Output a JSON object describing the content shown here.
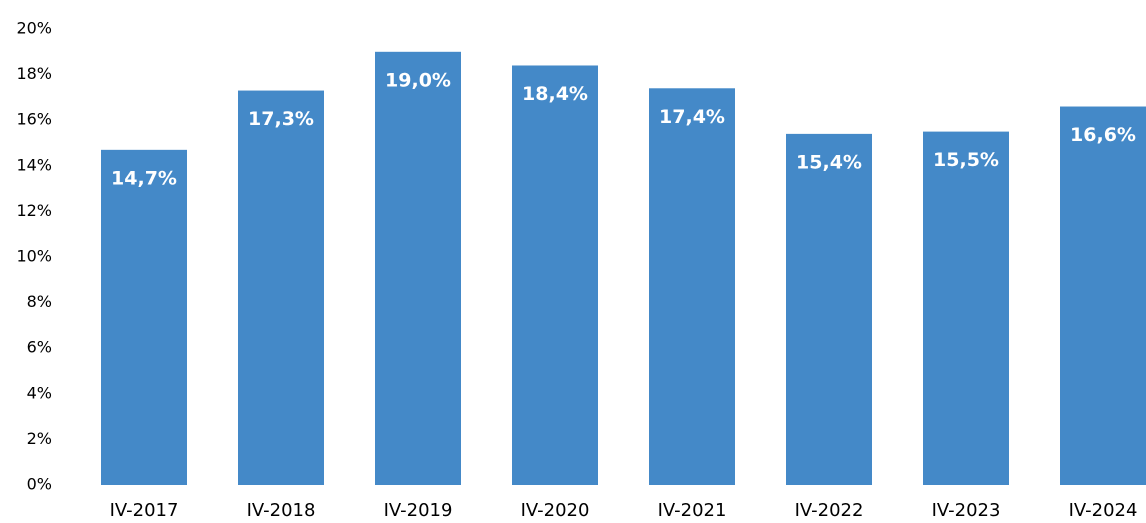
{
  "chart_data": {
    "type": "bar",
    "categories": [
      "IV-2017",
      "IV-2018",
      "IV-2019",
      "IV-2020",
      "IV-2021",
      "IV-2022",
      "IV-2023",
      "IV-2024"
    ],
    "values": [
      14.7,
      17.3,
      19.0,
      18.4,
      17.4,
      15.4,
      15.5,
      16.6
    ],
    "value_labels": [
      "14,7%",
      "17,3%",
      "19,0%",
      "18,4%",
      "17,4%",
      "15,4%",
      "15,5%",
      "16,6%"
    ],
    "color": "#4489c8",
    "ylim": [
      0,
      20
    ],
    "yticks": [
      {
        "value": 0,
        "label": "0%"
      },
      {
        "value": 2,
        "label": "2%"
      },
      {
        "value": 4,
        "label": "4%"
      },
      {
        "value": 6,
        "label": "6%"
      },
      {
        "value": 8,
        "label": "8%"
      },
      {
        "value": 10,
        "label": "10%"
      },
      {
        "value": 12,
        "label": "12%"
      },
      {
        "value": 14,
        "label": "14%"
      },
      {
        "value": 16,
        "label": "16%"
      },
      {
        "value": 18,
        "label": "18%"
      },
      {
        "value": 20,
        "label": "20%"
      }
    ],
    "grid": false
  }
}
